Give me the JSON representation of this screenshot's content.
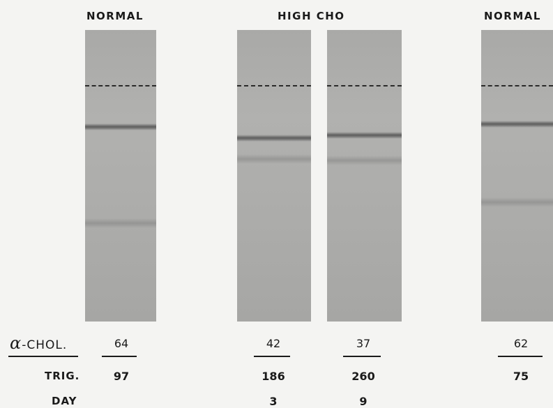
{
  "headers": {
    "normal_left": "NORMAL",
    "high_cho": "HIGH CHO",
    "normal_right": "NORMAL"
  },
  "row_labels": {
    "alpha_symbol": "α",
    "alpha_suffix": "-CHOL.",
    "trig": "TRIG.",
    "day": "DAY"
  },
  "lanes": [
    {
      "alpha_chol": "64",
      "trig": "97",
      "day": ""
    },
    {
      "alpha_chol": "42",
      "trig": "186",
      "day": "3"
    },
    {
      "alpha_chol": "37",
      "trig": "260",
      "day": "9"
    },
    {
      "alpha_chol": "62",
      "trig": "75",
      "day": ""
    }
  ]
}
